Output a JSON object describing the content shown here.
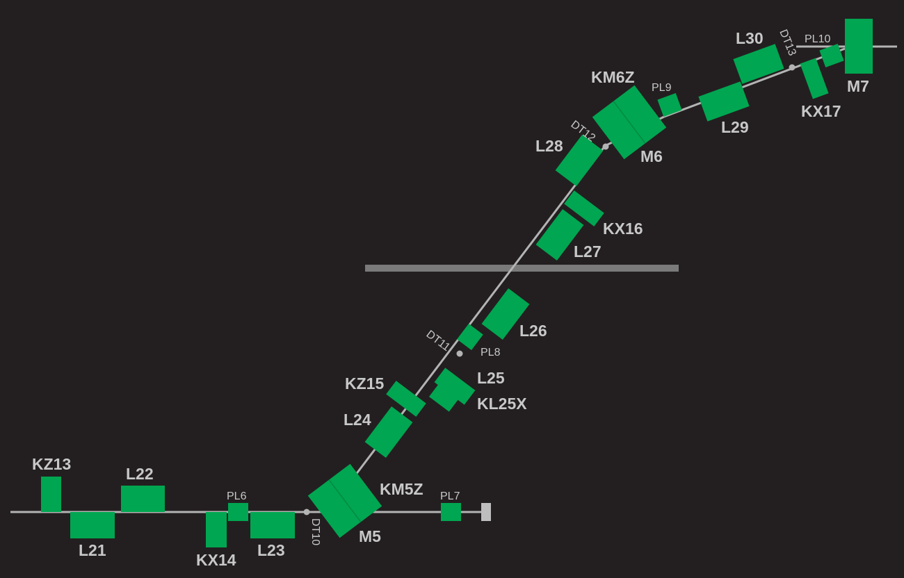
{
  "colors": {
    "background": "#231f20",
    "element": "#00a651",
    "element_edge": "#008a44",
    "beamline": "#b4b4b4",
    "divider": "#7a7a7a",
    "end_block": "#bebebe",
    "label": "#c8c8c8"
  },
  "labels": {
    "KZ13": "KZ13",
    "L21": "L21",
    "L22": "L22",
    "KX14": "KX14",
    "PL6": "PL6",
    "L23": "L23",
    "DT10": "DT10",
    "M5": "M5",
    "KM5Z": "KM5Z",
    "PL7": "PL7",
    "L24": "L24",
    "KZ15": "KZ15",
    "L25": "L25",
    "KL25X": "KL25X",
    "DT11": "DT11",
    "PL8": "PL8",
    "L26": "L26",
    "L27": "L27",
    "KX16": "KX16",
    "L28": "L28",
    "DT12": "DT12",
    "KM6Z": "KM6Z",
    "M6": "M6",
    "PL9": "PL9",
    "L29": "L29",
    "L30": "L30",
    "DT13": "DT13",
    "PL10": "PL10",
    "KX17": "KX17",
    "M7": "M7"
  }
}
